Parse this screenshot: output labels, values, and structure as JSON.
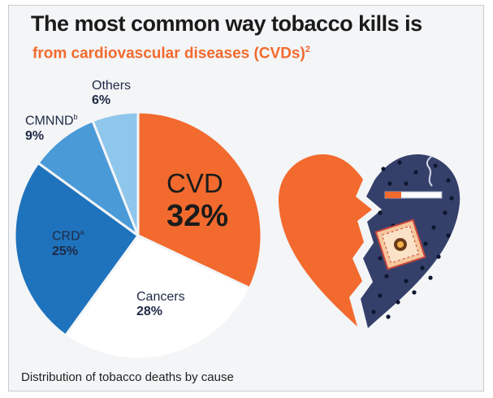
{
  "title": "The most common way tobacco kills is",
  "subtitle": {
    "text": "from cardiovascular diseases (CVDs)",
    "sup": "2"
  },
  "caption": "Distribution of tobacco deaths by cause",
  "colors": {
    "title": "#1b1b1b",
    "accent_orange": "#f26a2e",
    "cvd": "#f26a2e",
    "cancers": "#ffffff",
    "crd": "#1f73bd",
    "cmnnd": "#4a9ad8",
    "others": "#8ec6ec",
    "heart_dark": "#35406a",
    "heart_dots": "#0f1630"
  },
  "chart_data": {
    "type": "pie",
    "slices": [
      {
        "label": "CVD",
        "sup": "",
        "value": 32,
        "display": "32%",
        "color": "#f26a2e"
      },
      {
        "label": "Cancers",
        "sup": "",
        "value": 28,
        "display": "28%",
        "color": "#ffffff"
      },
      {
        "label": "CRD",
        "sup": "a",
        "value": 25,
        "display": "25%",
        "color": "#1f73bd"
      },
      {
        "label": "CMNND",
        "sup": "b",
        "value": 9,
        "display": "9%",
        "color": "#4a9ad8"
      },
      {
        "label": "Others",
        "sup": "",
        "value": 6,
        "display": "6%",
        "color": "#8ec6ec"
      }
    ],
    "start": "top",
    "direction": "clockwise",
    "legend": "none"
  },
  "illustration": {
    "icon": "broken-heart-cigarette-icon"
  }
}
